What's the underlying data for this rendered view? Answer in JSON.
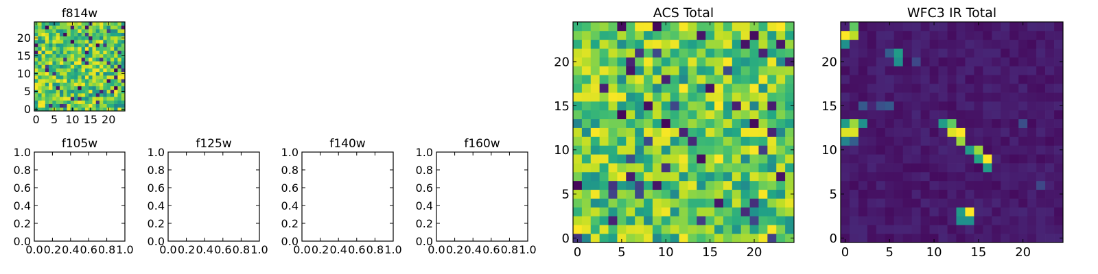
{
  "chart_data": [
    {
      "type": "heatmap",
      "title": "f814w",
      "xlim": [
        -0.5,
        24.5
      ],
      "ylim": [
        -0.5,
        24.5
      ],
      "xticks": [
        0,
        5,
        10,
        15,
        20
      ],
      "yticks": [
        0,
        5,
        10,
        15,
        20
      ],
      "grid": false,
      "colormap": "viridis",
      "grid_size": 25,
      "values": "random noise, mostly mid-to-high intensity"
    },
    {
      "type": "scatter",
      "title": "f105w",
      "xlim": [
        0.0,
        1.0
      ],
      "ylim": [
        0.0,
        1.0
      ],
      "xticks": [
        "0.0",
        "0.2",
        "0.4",
        "0.6",
        "0.8",
        "1.0"
      ],
      "yticks": [
        "0.0",
        "0.2",
        "0.4",
        "0.6",
        "0.8",
        "1.0"
      ],
      "grid": false,
      "values": []
    },
    {
      "type": "scatter",
      "title": "f125w",
      "xlim": [
        0.0,
        1.0
      ],
      "ylim": [
        0.0,
        1.0
      ],
      "xticks": [
        "0.0",
        "0.2",
        "0.4",
        "0.6",
        "0.8",
        "1.0"
      ],
      "yticks": [
        "0.0",
        "0.2",
        "0.4",
        "0.6",
        "0.8",
        "1.0"
      ],
      "grid": false,
      "values": []
    },
    {
      "type": "scatter",
      "title": "f140w",
      "xlim": [
        0.0,
        1.0
      ],
      "ylim": [
        0.0,
        1.0
      ],
      "xticks": [
        "0.0",
        "0.2",
        "0.4",
        "0.6",
        "0.8",
        "1.0"
      ],
      "yticks": [
        "0.0",
        "0.2",
        "0.4",
        "0.6",
        "0.8",
        "1.0"
      ],
      "grid": false,
      "values": []
    },
    {
      "type": "scatter",
      "title": "f160w",
      "xlim": [
        0.0,
        1.0
      ],
      "ylim": [
        0.0,
        1.0
      ],
      "xticks": [
        "0.0",
        "0.2",
        "0.4",
        "0.6",
        "0.8",
        "1.0"
      ],
      "yticks": [
        "0.0",
        "0.2",
        "0.4",
        "0.6",
        "0.8",
        "1.0"
      ],
      "grid": false,
      "values": []
    },
    {
      "type": "heatmap",
      "title": "ACS Total",
      "xlim": [
        -0.5,
        24.5
      ],
      "ylim": [
        -0.5,
        24.5
      ],
      "xticks": [
        0,
        5,
        10,
        15,
        20
      ],
      "yticks": [
        0,
        5,
        10,
        15,
        20
      ],
      "grid": false,
      "colormap": "viridis",
      "grid_size": 25,
      "values": "random noise, mostly mid-to-high intensity"
    },
    {
      "type": "heatmap",
      "title": "WFC3 IR Total",
      "xlim": [
        -0.5,
        24.5
      ],
      "ylim": [
        -0.5,
        24.5
      ],
      "xticks": [
        0,
        5,
        10,
        15,
        20
      ],
      "yticks": [
        0,
        5,
        10,
        15,
        20
      ],
      "grid": false,
      "colormap": "viridis",
      "grid_size": 25,
      "background_level": 0.07,
      "hot_pixels": [
        {
          "x": 0,
          "y": 23,
          "v": 1.0
        },
        {
          "x": 1,
          "y": 23,
          "v": 0.9
        },
        {
          "x": 1,
          "y": 24,
          "v": 0.75
        },
        {
          "x": 0,
          "y": 22,
          "v": 0.5
        },
        {
          "x": 6,
          "y": 21,
          "v": 0.55
        },
        {
          "x": 6,
          "y": 20,
          "v": 0.5
        },
        {
          "x": 5,
          "y": 21,
          "v": 0.3
        },
        {
          "x": 0,
          "y": 12,
          "v": 0.95
        },
        {
          "x": 1,
          "y": 12,
          "v": 0.95
        },
        {
          "x": 1,
          "y": 13,
          "v": 0.85
        },
        {
          "x": 0,
          "y": 13,
          "v": 0.55
        },
        {
          "x": 2,
          "y": 13,
          "v": 0.5
        },
        {
          "x": 0,
          "y": 11,
          "v": 0.45
        },
        {
          "x": 1,
          "y": 11,
          "v": 0.3
        },
        {
          "x": 11,
          "y": 13,
          "v": 0.55
        },
        {
          "x": 12,
          "y": 13,
          "v": 0.75
        },
        {
          "x": 12,
          "y": 12,
          "v": 0.95
        },
        {
          "x": 13,
          "y": 12,
          "v": 1.0
        },
        {
          "x": 13,
          "y": 11,
          "v": 0.85
        },
        {
          "x": 14,
          "y": 10,
          "v": 0.55
        },
        {
          "x": 15,
          "y": 10,
          "v": 0.85
        },
        {
          "x": 15,
          "y": 9,
          "v": 0.6
        },
        {
          "x": 16,
          "y": 9,
          "v": 1.0
        },
        {
          "x": 16,
          "y": 8,
          "v": 0.55
        },
        {
          "x": 13,
          "y": 3,
          "v": 0.55
        },
        {
          "x": 14,
          "y": 3,
          "v": 1.0
        },
        {
          "x": 13,
          "y": 2,
          "v": 0.5
        },
        {
          "x": 14,
          "y": 2,
          "v": 0.5
        },
        {
          "x": 2,
          "y": 15,
          "v": 0.28
        },
        {
          "x": 5,
          "y": 15,
          "v": 0.28
        },
        {
          "x": 4,
          "y": 15,
          "v": 0.25
        },
        {
          "x": 8,
          "y": 20,
          "v": 0.22
        },
        {
          "x": 20,
          "y": 13,
          "v": 0.24
        },
        {
          "x": 22,
          "y": 6,
          "v": 0.22
        }
      ]
    }
  ]
}
